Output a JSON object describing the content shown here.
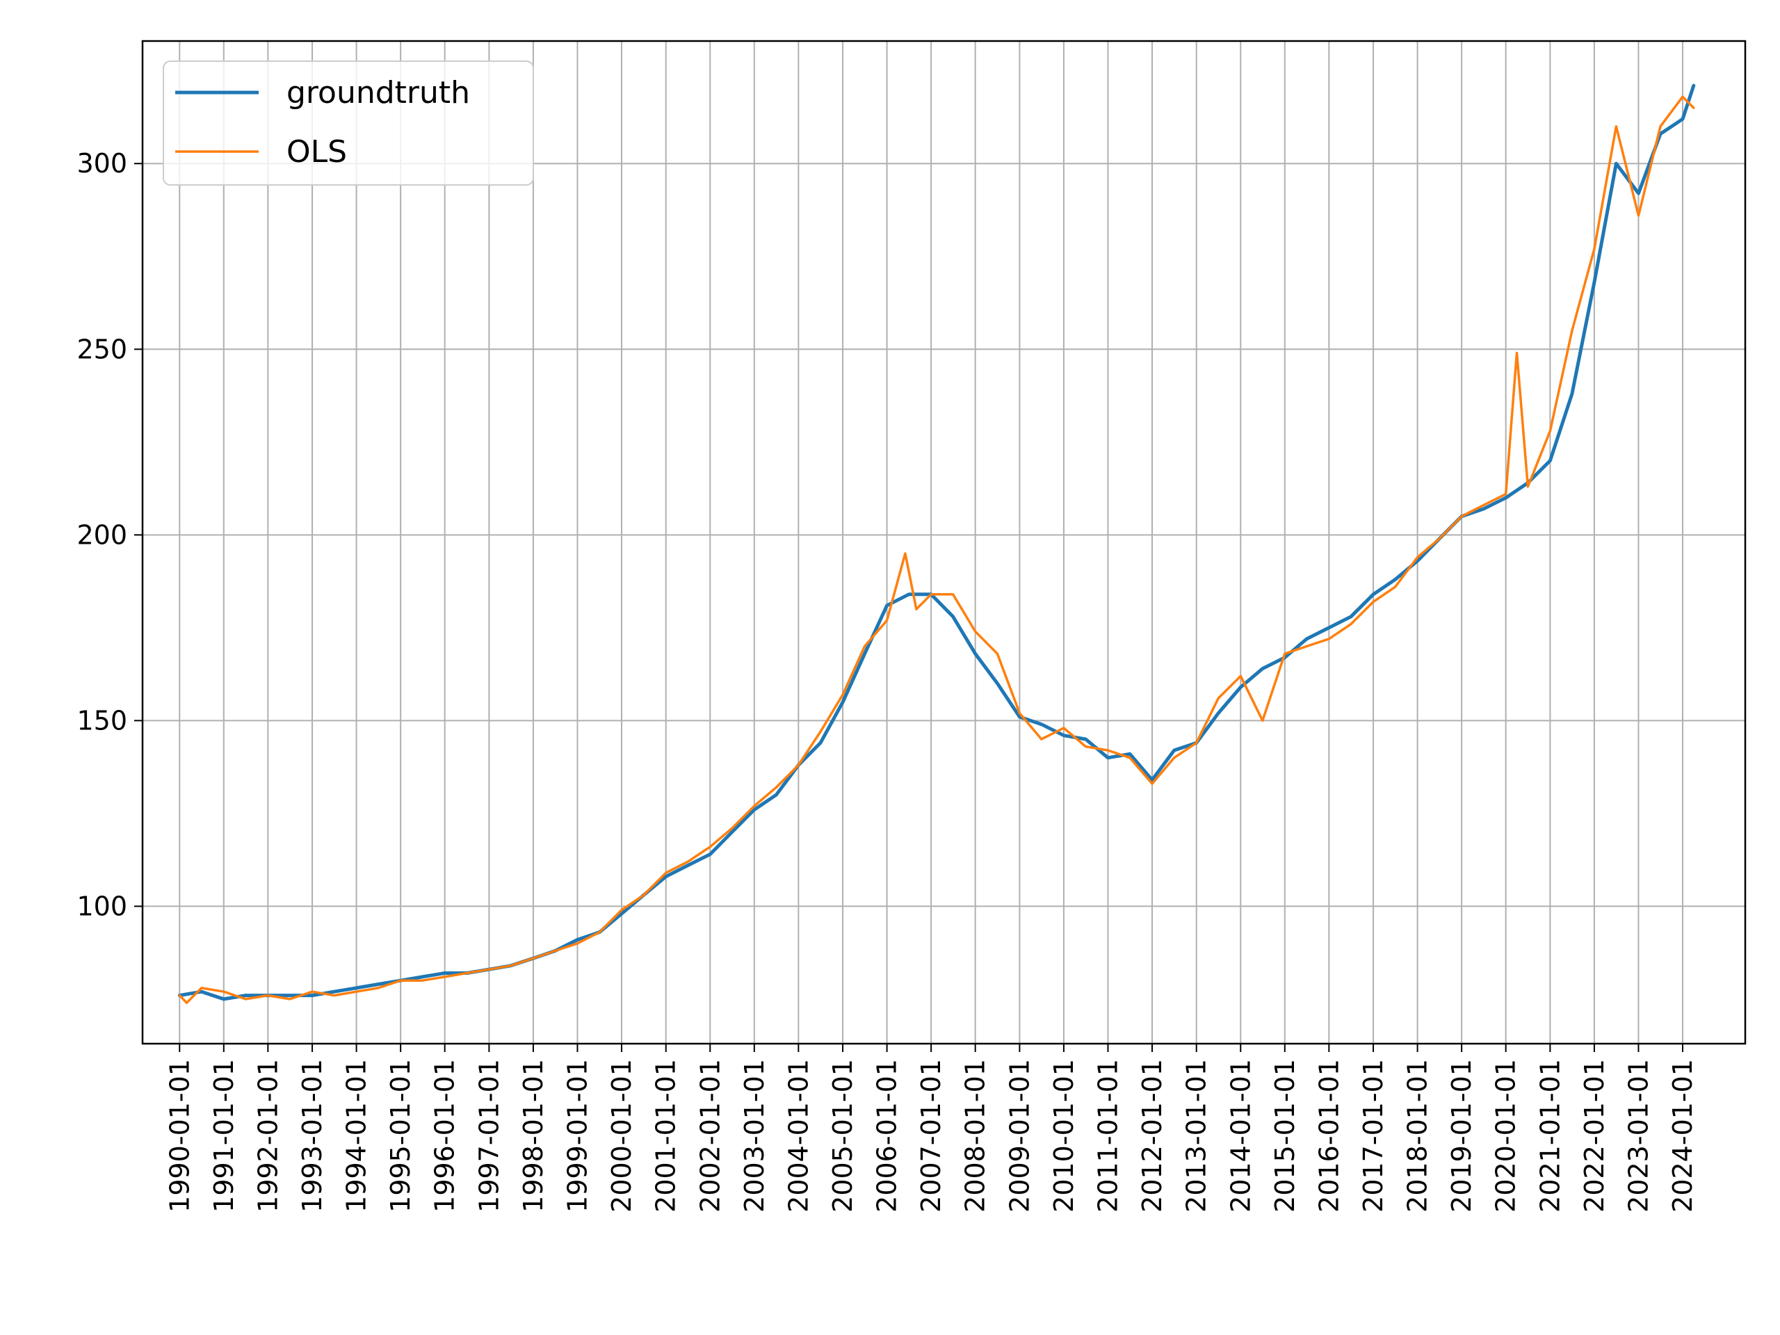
{
  "chart_data": {
    "type": "line",
    "title": "",
    "xlabel": "",
    "ylabel": "",
    "x_range": [
      "1989-03-01",
      "2025-06-01"
    ],
    "ylim": [
      63,
      333
    ],
    "y_ticks": [
      100,
      150,
      200,
      250,
      300
    ],
    "y_tick_labels": [
      "100",
      "150",
      "200",
      "250",
      "300"
    ],
    "x_ticks": [
      "1990-01-01",
      "1991-01-01",
      "1992-01-01",
      "1993-01-01",
      "1994-01-01",
      "1995-01-01",
      "1996-01-01",
      "1997-01-01",
      "1998-01-01",
      "1999-01-01",
      "2000-01-01",
      "2001-01-01",
      "2002-01-01",
      "2003-01-01",
      "2004-01-01",
      "2005-01-01",
      "2006-01-01",
      "2007-01-01",
      "2008-01-01",
      "2009-01-01",
      "2010-01-01",
      "2011-01-01",
      "2012-01-01",
      "2013-01-01",
      "2014-01-01",
      "2015-01-01",
      "2016-01-01",
      "2017-01-01",
      "2018-01-01",
      "2019-01-01",
      "2020-01-01",
      "2021-01-01",
      "2022-01-01",
      "2023-01-01",
      "2024-01-01"
    ],
    "grid": true,
    "legend_position": "top-left",
    "series": [
      {
        "name": "groundtruth",
        "color": "#1f77b4",
        "x": [
          "1990-01-01",
          "1990-07-01",
          "1991-01-01",
          "1991-07-01",
          "1992-01-01",
          "1992-07-01",
          "1993-01-01",
          "1993-07-01",
          "1994-01-01",
          "1994-07-01",
          "1995-01-01",
          "1995-07-01",
          "1996-01-01",
          "1996-07-01",
          "1997-01-01",
          "1997-07-01",
          "1998-01-01",
          "1998-07-01",
          "1999-01-01",
          "1999-07-01",
          "2000-01-01",
          "2000-07-01",
          "2001-01-01",
          "2001-07-01",
          "2002-01-01",
          "2002-07-01",
          "2003-01-01",
          "2003-07-01",
          "2004-01-01",
          "2004-07-01",
          "2005-01-01",
          "2005-07-01",
          "2006-01-01",
          "2006-07-01",
          "2007-01-01",
          "2007-07-01",
          "2008-01-01",
          "2008-07-01",
          "2009-01-01",
          "2009-07-01",
          "2010-01-01",
          "2010-07-01",
          "2011-01-01",
          "2011-07-01",
          "2012-01-01",
          "2012-07-01",
          "2013-01-01",
          "2013-07-01",
          "2014-01-01",
          "2014-07-01",
          "2015-01-01",
          "2015-07-01",
          "2016-01-01",
          "2016-07-01",
          "2017-01-01",
          "2017-07-01",
          "2018-01-01",
          "2018-07-01",
          "2019-01-01",
          "2019-07-01",
          "2020-01-01",
          "2020-07-01",
          "2021-01-01",
          "2021-07-01",
          "2022-01-01",
          "2022-07-01",
          "2023-01-01",
          "2023-07-01",
          "2024-01-01",
          "2024-04-01"
        ],
        "values": [
          76,
          77,
          75,
          76,
          76,
          76,
          76,
          77,
          78,
          79,
          80,
          81,
          82,
          82,
          83,
          84,
          86,
          88,
          91,
          93,
          98,
          103,
          108,
          111,
          114,
          120,
          126,
          130,
          138,
          144,
          155,
          168,
          181,
          184,
          184,
          178,
          168,
          160,
          151,
          149,
          146,
          145,
          140,
          141,
          134,
          142,
          144,
          152,
          159,
          164,
          167,
          172,
          175,
          178,
          184,
          188,
          193,
          199,
          205,
          207,
          210,
          214,
          220,
          238,
          268,
          300,
          292,
          308,
          312,
          321
        ]
      },
      {
        "name": "OLS",
        "color": "#ff7f0e",
        "x": [
          "1990-01-01",
          "1990-03-01",
          "1990-07-01",
          "1991-01-01",
          "1991-07-01",
          "1992-01-01",
          "1992-07-01",
          "1993-01-01",
          "1993-07-01",
          "1994-01-01",
          "1994-07-01",
          "1995-01-01",
          "1995-07-01",
          "1996-01-01",
          "1996-07-01",
          "1997-01-01",
          "1997-07-01",
          "1998-01-01",
          "1998-07-01",
          "1999-01-01",
          "1999-07-01",
          "2000-01-01",
          "2000-07-01",
          "2001-01-01",
          "2001-07-01",
          "2002-01-01",
          "2002-07-01",
          "2003-01-01",
          "2003-07-01",
          "2004-01-01",
          "2004-07-01",
          "2005-01-01",
          "2005-07-01",
          "2006-01-01",
          "2006-06-01",
          "2006-09-01",
          "2007-01-01",
          "2007-07-01",
          "2008-01-01",
          "2008-07-01",
          "2009-01-01",
          "2009-07-01",
          "2010-01-01",
          "2010-07-01",
          "2011-01-01",
          "2011-07-01",
          "2012-01-01",
          "2012-07-01",
          "2013-01-01",
          "2013-07-01",
          "2014-01-01",
          "2014-07-01",
          "2015-01-01",
          "2015-07-01",
          "2016-01-01",
          "2016-07-01",
          "2017-01-01",
          "2017-07-01",
          "2018-01-01",
          "2018-07-01",
          "2019-01-01",
          "2019-07-01",
          "2020-01-01",
          "2020-04-01",
          "2020-07-01",
          "2021-01-01",
          "2021-07-01",
          "2022-01-01",
          "2022-07-01",
          "2023-01-01",
          "2023-07-01",
          "2024-01-01",
          "2024-04-01"
        ],
        "values": [
          76,
          74,
          78,
          77,
          75,
          76,
          75,
          77,
          76,
          77,
          78,
          80,
          80,
          81,
          82,
          83,
          84,
          86,
          88,
          90,
          93,
          99,
          103,
          109,
          112,
          116,
          121,
          127,
          132,
          138,
          147,
          157,
          170,
          177,
          195,
          180,
          184,
          184,
          174,
          168,
          152,
          145,
          148,
          143,
          142,
          140,
          133,
          140,
          144,
          156,
          162,
          150,
          168,
          170,
          172,
          176,
          182,
          186,
          194,
          199,
          205,
          208,
          211,
          249,
          213,
          228,
          255,
          277,
          310,
          286,
          310,
          318,
          315
        ]
      }
    ]
  }
}
